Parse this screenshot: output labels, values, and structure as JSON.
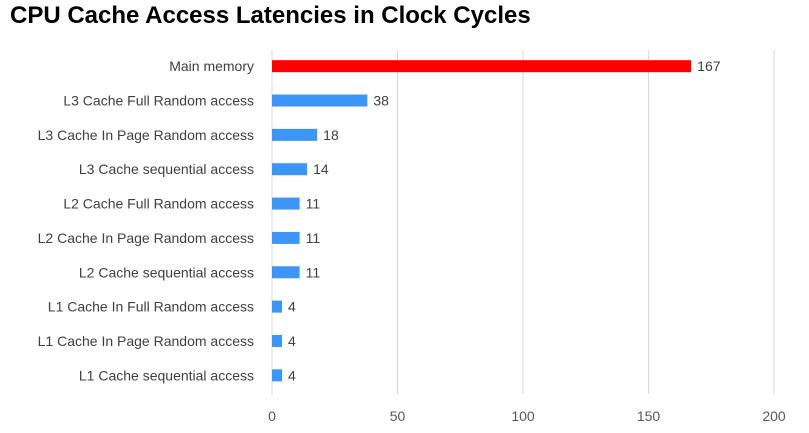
{
  "chart_data": {
    "type": "bar",
    "orientation": "horizontal",
    "title": "CPU Cache Access Latencies in Clock Cycles",
    "xlabel": "",
    "ylabel": "",
    "categories": [
      "Main memory",
      "L3 Cache Full Random access",
      "L3 Cache In Page Random access",
      "L3 Cache sequential access",
      "L2 Cache Full Random access",
      "L2 Cache In Page Random access",
      "L2 Cache sequential access",
      "L1 Cache In Full Random access",
      "L1 Cache In Page Random access",
      "L1 Cache sequential access"
    ],
    "values": [
      167,
      38,
      18,
      14,
      11,
      11,
      11,
      4,
      4,
      4
    ],
    "bar_colors": [
      "#ff0000",
      "#3d96f5",
      "#3d96f5",
      "#3d96f5",
      "#3d96f5",
      "#3d96f5",
      "#3d96f5",
      "#3d96f5",
      "#3d96f5",
      "#3d96f5"
    ],
    "xlim": [
      0,
      200
    ],
    "xticks": [
      0,
      50,
      100,
      150,
      200
    ],
    "grid": true,
    "legend": "none",
    "data_labels": true
  }
}
